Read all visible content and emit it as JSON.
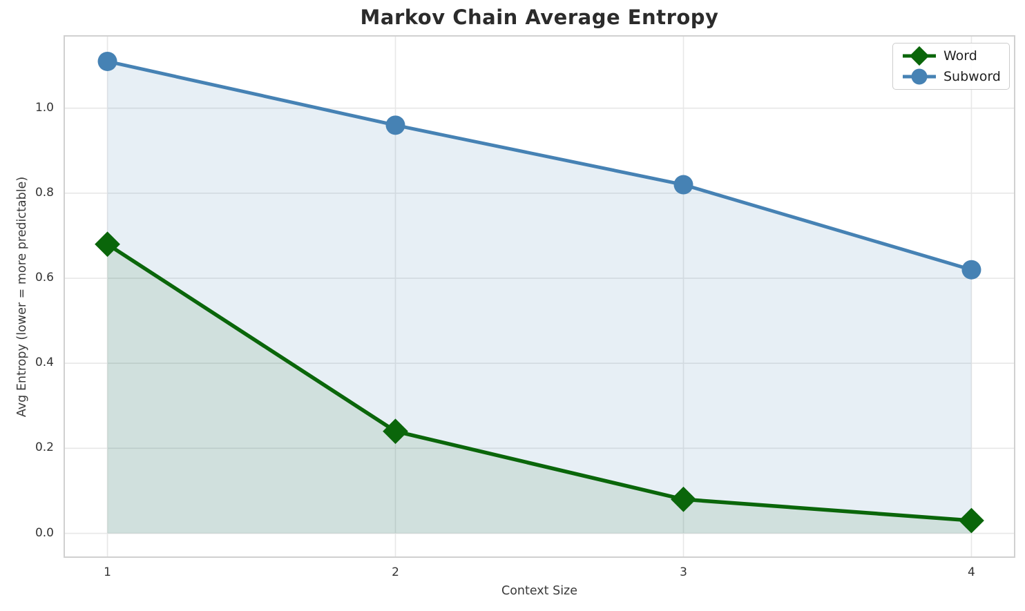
{
  "title": "Markov Chain Average Entropy",
  "axes": {
    "xlabel": "Context Size",
    "ylabel": "Avg Entropy (lower = more predictable)"
  },
  "legend": {
    "position": "upper right",
    "items": [
      {
        "label": "Word",
        "marker": "diamond-marker-icon",
        "color": "#0a660a"
      },
      {
        "label": "Subword",
        "marker": "circle-marker-icon",
        "color": "#4682b4"
      }
    ]
  },
  "chart_data": {
    "type": "line",
    "title": "Markov Chain Average Entropy",
    "xlabel": "Context Size",
    "ylabel": "Avg Entropy (lower = more predictable)",
    "x": [
      1,
      2,
      3,
      4
    ],
    "series": [
      {
        "name": "Word",
        "values": [
          0.68,
          0.24,
          0.08,
          0.03
        ],
        "color": "#0a660a",
        "marker": "diamond",
        "line_width": 5.5,
        "fill_to_zero": true,
        "fill_color": "rgba(10,102,10,0.10)"
      },
      {
        "name": "Subword",
        "values": [
          1.11,
          0.96,
          0.82,
          0.62
        ],
        "color": "#4682b4",
        "marker": "circle",
        "line_width": 5,
        "fill_to_zero": true,
        "fill_color": "rgba(70,130,180,0.13)"
      }
    ],
    "xlim": [
      0.85,
      4.15
    ],
    "ylim": [
      -0.056,
      1.17
    ],
    "xticks": {
      "values": [
        1,
        2,
        3,
        4
      ],
      "labels": [
        "1",
        "2",
        "3",
        "4"
      ]
    },
    "yticks": {
      "values": [
        0.0,
        0.2,
        0.4,
        0.6,
        0.8,
        1.0
      ],
      "labels": [
        "0.0",
        "0.2",
        "0.4",
        "0.6",
        "0.8",
        "1.0"
      ]
    },
    "grid": true,
    "grid_color": "#e7e7e7",
    "spine_color": "#d0d0d0",
    "legend_position": "upper right"
  }
}
